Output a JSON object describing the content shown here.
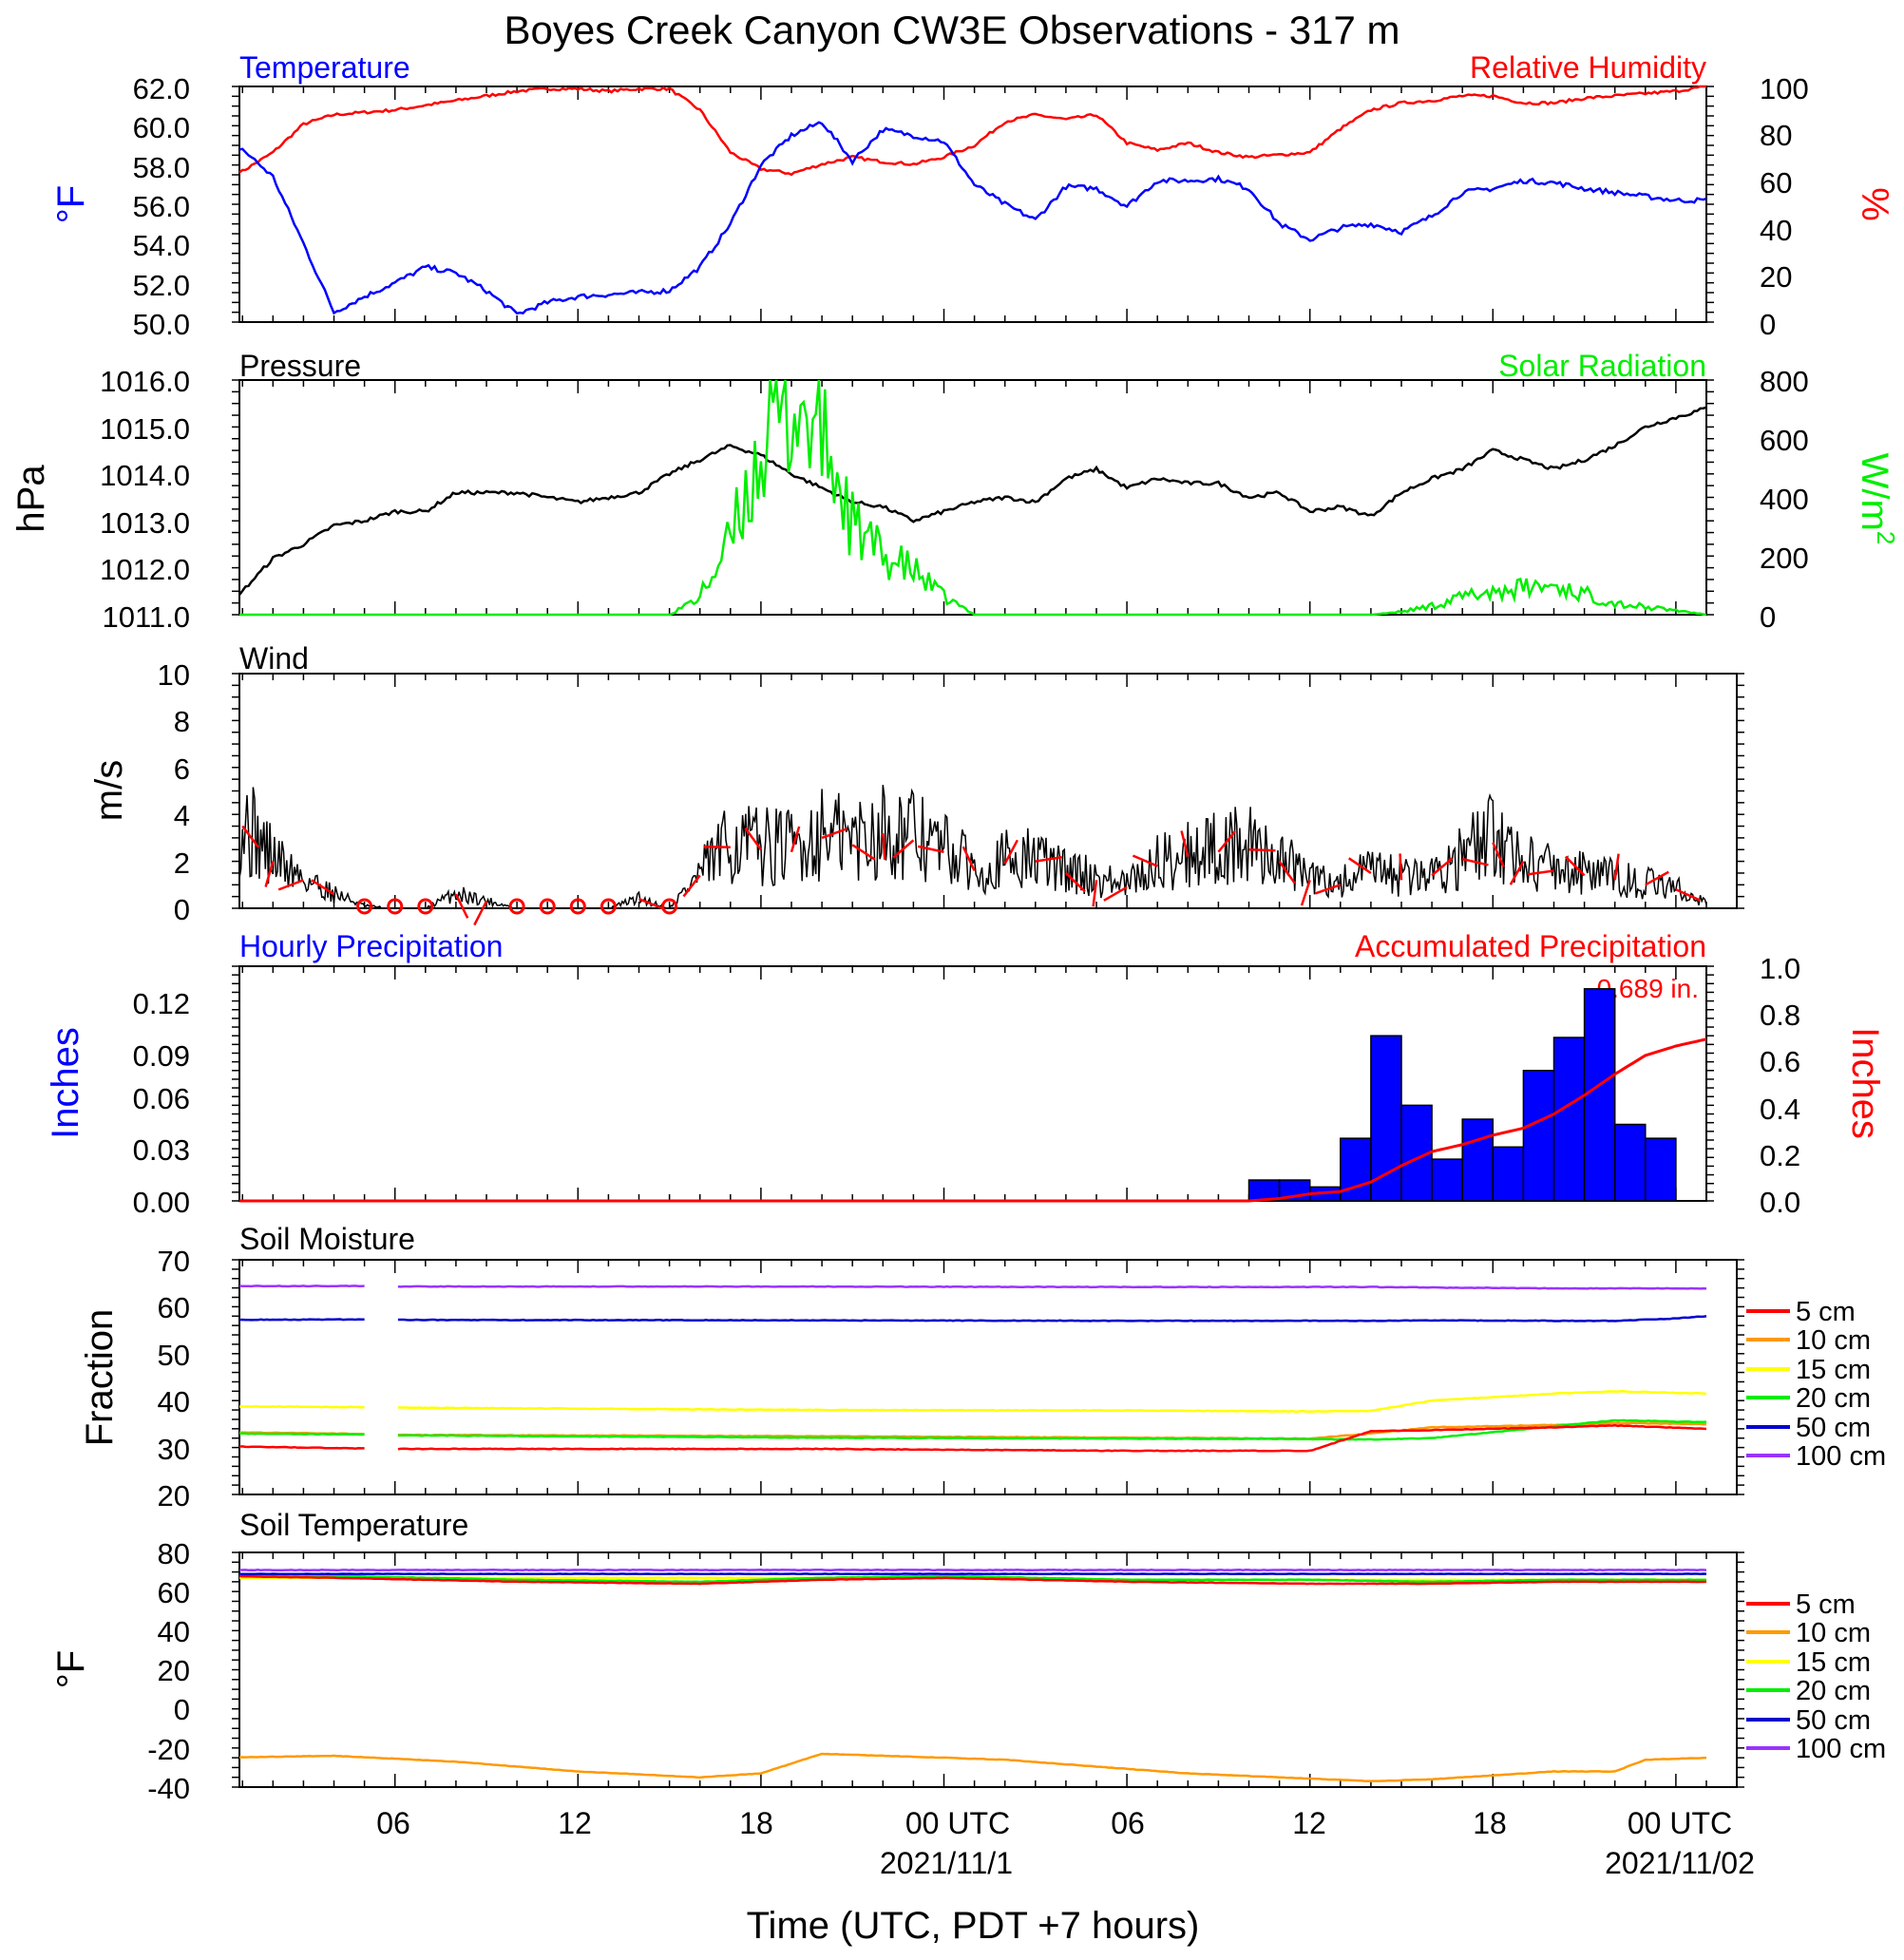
{
  "figure": {
    "title": "Boyes Creek Canyon CW3E Observations - 317 m",
    "x_axis_label": "Time (UTC, PDT +7 hours)",
    "x_tick_labels": [
      "06",
      "12",
      "18",
      "00 UTC",
      "06",
      "12",
      "18",
      "00 UTC"
    ],
    "date_labels": [
      "2021/11/1",
      "2021/11/02"
    ]
  },
  "colors": {
    "temperature": "#0000ff",
    "humidity": "#ff0000",
    "pressure": "#000000",
    "solar": "#00ee00",
    "wind": "#000000",
    "wind_barb": "#ff0000",
    "hourly_bar": "#0000ff",
    "accum_line": "#ff0000",
    "soil_5cm": "#ff0000",
    "soil_10cm": "#ff9900",
    "soil_15cm": "#ffff00",
    "soil_20cm": "#00ee00",
    "soil_50cm": "#0000cc",
    "soil_100cm": "#9933ff"
  },
  "panels": {
    "temp_rh": {
      "left_title": "Temperature",
      "right_title": "Relative Humidity",
      "left_unit": "°F",
      "right_unit": "%",
      "left_ticks": [
        "62.0",
        "60.0",
        "58.0",
        "56.0",
        "54.0",
        "52.0",
        "50.0"
      ],
      "right_ticks": [
        "100",
        "80",
        "60",
        "40",
        "20",
        "0"
      ]
    },
    "pressure_solar": {
      "left_title": "Pressure",
      "right_title": "Solar Radiation",
      "left_unit": "hPa",
      "right_unit": "W/m",
      "right_unit_sup": "2",
      "left_ticks": [
        "1016.0",
        "1015.0",
        "1014.0",
        "1013.0",
        "1012.0",
        "1011.0"
      ],
      "right_ticks": [
        "800",
        "600",
        "400",
        "200",
        "0"
      ]
    },
    "wind": {
      "left_title": "Wind",
      "left_unit": "m/s",
      "left_ticks": [
        "10",
        "8",
        "6",
        "4",
        "2",
        "0"
      ]
    },
    "precip": {
      "left_title": "Hourly Precipitation",
      "right_title": "Accumulated Precipitation",
      "left_unit": "Inches",
      "right_unit": "Inches",
      "left_ticks": [
        "0.12",
        "0.09",
        "0.06",
        "0.03",
        "0.00"
      ],
      "right_ticks": [
        "1.0",
        "0.8",
        "0.6",
        "0.4",
        "0.2",
        "0.0"
      ],
      "total_label": "0.689 in."
    },
    "soil_moisture": {
      "left_title": "Soil Moisture",
      "left_unit": "Fraction",
      "left_ticks": [
        "70",
        "60",
        "50",
        "40",
        "30",
        "20"
      ],
      "legend": [
        "5 cm",
        "10 cm",
        "15 cm",
        "20 cm",
        "50 cm",
        "100 cm"
      ]
    },
    "soil_temp": {
      "left_title": "Soil Temperature",
      "left_unit": "°F",
      "left_ticks": [
        "80",
        "60",
        "40",
        "20",
        "0",
        "-20",
        "-40"
      ],
      "legend": [
        "5 cm",
        "10 cm",
        "15 cm",
        "20 cm",
        "50 cm",
        "100 cm"
      ]
    }
  },
  "chart_data": [
    {
      "type": "line",
      "title": "Temperature / Relative Humidity",
      "x_unit": "hours since 2021-10-31 00 UTC",
      "x_range": [
        0.9,
        49.0
      ],
      "ylim_left": [
        50.0,
        62.0
      ],
      "ylim_right": [
        0,
        100
      ],
      "series": [
        {
          "name": "Temperature",
          "axis": "left",
          "x": [
            0,
            1,
            2,
            3,
            4,
            5,
            6,
            7,
            8,
            9,
            10,
            11,
            12,
            13,
            14,
            15,
            16,
            17,
            18,
            19,
            20,
            21,
            22,
            23,
            24,
            25,
            26,
            27,
            28,
            29,
            30,
            31,
            32,
            33,
            34,
            35,
            36,
            37,
            38,
            39,
            40,
            41,
            42,
            43,
            44,
            45,
            46,
            47,
            48,
            49
          ],
          "values": [
            59.5,
            58.8,
            57.4,
            54.0,
            50.5,
            51.3,
            52.0,
            52.8,
            52.5,
            51.6,
            50.4,
            51.0,
            51.3,
            51.4,
            51.5,
            51.6,
            52.8,
            55.0,
            58.0,
            59.5,
            60.2,
            58.2,
            59.8,
            59.5,
            59.2,
            57.0,
            56.0,
            55.2,
            56.9,
            56.8,
            55.9,
            57.2,
            57.2,
            57.3,
            56.8,
            55.0,
            54.2,
            54.8,
            55.0,
            54.6,
            55.4,
            56.6,
            56.8,
            57.2,
            57.1,
            56.8,
            56.6,
            56.4,
            56.2,
            56.2
          ]
        },
        {
          "name": "Relative Humidity",
          "axis": "right",
          "x": [
            0,
            1,
            2,
            3,
            4,
            5,
            6,
            7,
            8,
            9,
            10,
            11,
            12,
            13,
            14,
            15,
            16,
            17,
            18,
            19,
            20,
            21,
            22,
            23,
            24,
            25,
            26,
            27,
            28,
            29,
            30,
            31,
            32,
            33,
            34,
            35,
            36,
            37,
            38,
            39,
            40,
            41,
            42,
            43,
            44,
            45,
            46,
            47,
            48,
            49
          ],
          "values": [
            65,
            64,
            72,
            84,
            88,
            89,
            90,
            92,
            94,
            96,
            98,
            99,
            99,
            98,
            99,
            99,
            90,
            72,
            65,
            63,
            67,
            70,
            68,
            67,
            70,
            75,
            85,
            88,
            86,
            88,
            76,
            73,
            76,
            72,
            70,
            71,
            72,
            82,
            90,
            93,
            94,
            96,
            96,
            93,
            93,
            95,
            96,
            97,
            98,
            100
          ]
        }
      ]
    },
    {
      "type": "line",
      "title": "Pressure / Solar Radiation",
      "x_unit": "hours since 2021-10-31 00 UTC",
      "ylim_left": [
        1011.0,
        1016.0
      ],
      "ylim_right": [
        0,
        800
      ],
      "series": [
        {
          "name": "Pressure",
          "axis": "left",
          "x": [
            0,
            1,
            2,
            3,
            4,
            5,
            6,
            7,
            8,
            9,
            10,
            11,
            12,
            13,
            14,
            15,
            16,
            17,
            18,
            19,
            20,
            21,
            22,
            23,
            24,
            25,
            26,
            27,
            28,
            29,
            30,
            31,
            32,
            33,
            34,
            35,
            36,
            37,
            38,
            39,
            40,
            41,
            42,
            43,
            44,
            45,
            46,
            47,
            48,
            49
          ],
          "values": [
            1011.1,
            1011.5,
            1012.2,
            1012.5,
            1012.9,
            1013.0,
            1013.2,
            1013.2,
            1013.6,
            1013.6,
            1013.6,
            1013.5,
            1013.4,
            1013.5,
            1013.6,
            1014.0,
            1014.3,
            1014.6,
            1014.4,
            1014.0,
            1013.7,
            1013.4,
            1013.3,
            1013.0,
            1013.2,
            1013.4,
            1013.5,
            1013.4,
            1013.9,
            1014.1,
            1013.7,
            1013.9,
            1013.8,
            1013.8,
            1013.5,
            1013.6,
            1013.2,
            1013.3,
            1013.1,
            1013.6,
            1013.9,
            1014.1,
            1014.5,
            1014.3,
            1014.1,
            1014.3,
            1014.6,
            1015.0,
            1015.2,
            1015.4
          ]
        },
        {
          "name": "Solar Radiation",
          "axis": "right",
          "x": [
            0,
            1,
            2,
            3,
            4,
            5,
            6,
            7,
            8,
            9,
            10,
            11,
            12,
            13,
            14,
            15,
            16,
            17,
            18,
            19,
            20,
            21,
            22,
            23,
            24,
            25,
            26,
            27,
            28,
            29,
            30,
            31,
            32,
            33,
            34,
            35,
            36,
            37,
            38,
            39,
            40,
            41,
            42,
            43,
            44,
            45,
            46,
            47,
            48,
            49
          ],
          "values": [
            0,
            0,
            0,
            0,
            0,
            0,
            0,
            0,
            0,
            0,
            0,
            0,
            0,
            0,
            0,
            0,
            60,
            250,
            560,
            720,
            620,
            300,
            200,
            150,
            60,
            0,
            0,
            0,
            0,
            0,
            0,
            0,
            0,
            0,
            0,
            0,
            0,
            0,
            0,
            10,
            30,
            60,
            80,
            90,
            100,
            70,
            40,
            25,
            15,
            0
          ]
        }
      ]
    },
    {
      "type": "line",
      "title": "Wind",
      "x_unit": "hours since 2021-10-31 00 UTC",
      "ylim": [
        0,
        10
      ],
      "series": [
        {
          "name": "Wind speed",
          "x": [
            0,
            1,
            2,
            3,
            4,
            5,
            6,
            7,
            8,
            9,
            10,
            11,
            12,
            13,
            14,
            15,
            16,
            17,
            18,
            19,
            20,
            21,
            22,
            23,
            24,
            25,
            26,
            27,
            28,
            29,
            30,
            31,
            32,
            33,
            34,
            35,
            36,
            37,
            38,
            39,
            40,
            41,
            42,
            43,
            44,
            45,
            46,
            47,
            48,
            49
          ],
          "values": [
            3.2,
            3.5,
            2.0,
            1.2,
            0.6,
            0.1,
            0,
            0,
            0.6,
            0.3,
            0,
            0,
            0,
            0,
            0.4,
            0,
            1.4,
            2.6,
            2.5,
            2.4,
            3.0,
            2.7,
            3.2,
            2.9,
            2.4,
            1.6,
            1.9,
            2.0,
            1.5,
            1.2,
            0.9,
            1.8,
            2.2,
            2.4,
            2.5,
            2.0,
            1.2,
            1.0,
            1.5,
            1.2,
            1.4,
            2.1,
            2.8,
            2.0,
            1.6,
            1.4,
            1.2,
            1.0,
            0.8,
            0.2
          ]
        }
      ]
    },
    {
      "type": "bar",
      "title": "Hourly Precipitation",
      "x_unit": "hours since 2021-10-31 00 UTC",
      "ylim": [
        0,
        0.135
      ],
      "x": [
        34,
        35,
        36,
        37,
        38,
        39,
        40,
        41,
        42,
        43,
        44,
        45,
        46,
        47,
        48
      ],
      "values": [
        0.012,
        0.012,
        0.008,
        0.036,
        0.095,
        0.055,
        0.024,
        0.047,
        0.031,
        0.075,
        0.094,
        0.122,
        0.044,
        0.036,
        0.0
      ],
      "accumulated": {
        "name": "Accumulated Precipitation",
        "ylim": [
          0,
          1.0
        ],
        "x": [
          0,
          34,
          35,
          36,
          37,
          38,
          39,
          40,
          41,
          42,
          43,
          44,
          45,
          46,
          47,
          48,
          49
        ],
        "values": [
          0,
          0,
          0.01,
          0.03,
          0.04,
          0.08,
          0.15,
          0.21,
          0.24,
          0.28,
          0.31,
          0.37,
          0.45,
          0.54,
          0.62,
          0.66,
          0.689
        ]
      }
    },
    {
      "type": "line",
      "title": "Soil Moisture",
      "x_unit": "hours since 2021-10-31 00 UTC",
      "ylim": [
        20,
        70
      ],
      "gap": [
        5,
        6
      ],
      "series": [
        {
          "name": "5 cm",
          "x": [
            0,
            5,
            6,
            20,
            30,
            36,
            38,
            40,
            44,
            46,
            49
          ],
          "values": [
            30.3,
            29.8,
            29.7,
            29.7,
            29.3,
            29.3,
            33.5,
            33.7,
            34.3,
            34.7,
            34.0
          ]
        },
        {
          "name": "10 cm",
          "x": [
            0,
            5,
            6,
            20,
            30,
            36,
            38,
            40,
            44,
            46,
            49
          ],
          "values": [
            33.3,
            32.9,
            32.7,
            32.4,
            32.1,
            31.9,
            33.0,
            34.3,
            34.8,
            35.2,
            35.0
          ]
        },
        {
          "name": "15 cm",
          "x": [
            0,
            5,
            6,
            20,
            30,
            36,
            38,
            40,
            44,
            46,
            49
          ],
          "values": [
            38.8,
            38.6,
            38.5,
            38.0,
            37.9,
            37.7,
            37.8,
            40.0,
            41.5,
            42.0,
            41.5
          ]
        },
        {
          "name": "20 cm",
          "x": [
            0,
            5,
            6,
            20,
            30,
            36,
            38,
            40,
            44,
            46,
            49
          ],
          "values": [
            33.0,
            32.8,
            32.6,
            32.1,
            31.9,
            31.8,
            31.7,
            32.0,
            34.5,
            35.8,
            35.4
          ]
        },
        {
          "name": "50 cm",
          "x": [
            0,
            5,
            6,
            20,
            30,
            36,
            38,
            40,
            44,
            46,
            48,
            49
          ],
          "values": [
            57.2,
            57.3,
            57.2,
            57.1,
            57.0,
            57.0,
            57.0,
            57.1,
            57.0,
            57.0,
            57.5,
            58.0
          ]
        },
        {
          "name": "100 cm",
          "x": [
            0,
            5,
            6,
            20,
            30,
            36,
            38,
            40,
            44,
            46,
            49
          ],
          "values": [
            64.4,
            64.4,
            64.3,
            64.3,
            64.2,
            64.2,
            64.2,
            64.1,
            63.9,
            63.9,
            63.9
          ]
        }
      ]
    },
    {
      "type": "line",
      "title": "Soil Temperature",
      "x_unit": "hours since 2021-10-31 00 UTC",
      "ylim": [
        -40,
        80
      ],
      "series": [
        {
          "name": "5 cm",
          "x": [
            0,
            4,
            10,
            16,
            20,
            24,
            30,
            36,
            40,
            44,
            49
          ],
          "values": [
            68,
            67,
            65,
            64,
            66,
            67,
            65,
            64,
            64,
            65,
            65
          ]
        },
        {
          "name": "10 cm",
          "x": [
            0,
            4,
            8,
            12,
            16,
            18,
            20,
            22,
            26,
            32,
            38,
            40,
            44,
            46,
            47,
            49
          ],
          "values": [
            -25,
            -24,
            -27,
            -32,
            -35,
            -33,
            -23,
            -24,
            -26,
            -33,
            -37,
            -36,
            -32,
            -32,
            -26,
            -25
          ]
        },
        {
          "name": "15 cm",
          "x": [
            0,
            10,
            20,
            30,
            40,
            49
          ],
          "values": [
            67,
            67,
            67,
            66,
            66,
            66
          ]
        },
        {
          "name": "20 cm",
          "x": [
            0,
            4,
            10,
            16,
            20,
            24,
            30,
            36,
            40,
            44,
            49
          ],
          "values": [
            68,
            68,
            66,
            65,
            67,
            68,
            66,
            66,
            65,
            66,
            66
          ]
        },
        {
          "name": "50 cm",
          "x": [
            0,
            10,
            20,
            30,
            40,
            49
          ],
          "values": [
            69,
            69,
            69,
            69,
            69,
            69
          ]
        },
        {
          "name": "100 cm",
          "x": [
            0,
            10,
            20,
            30,
            40,
            49
          ],
          "values": [
            71,
            71,
            71,
            71,
            71,
            71
          ]
        }
      ]
    }
  ]
}
